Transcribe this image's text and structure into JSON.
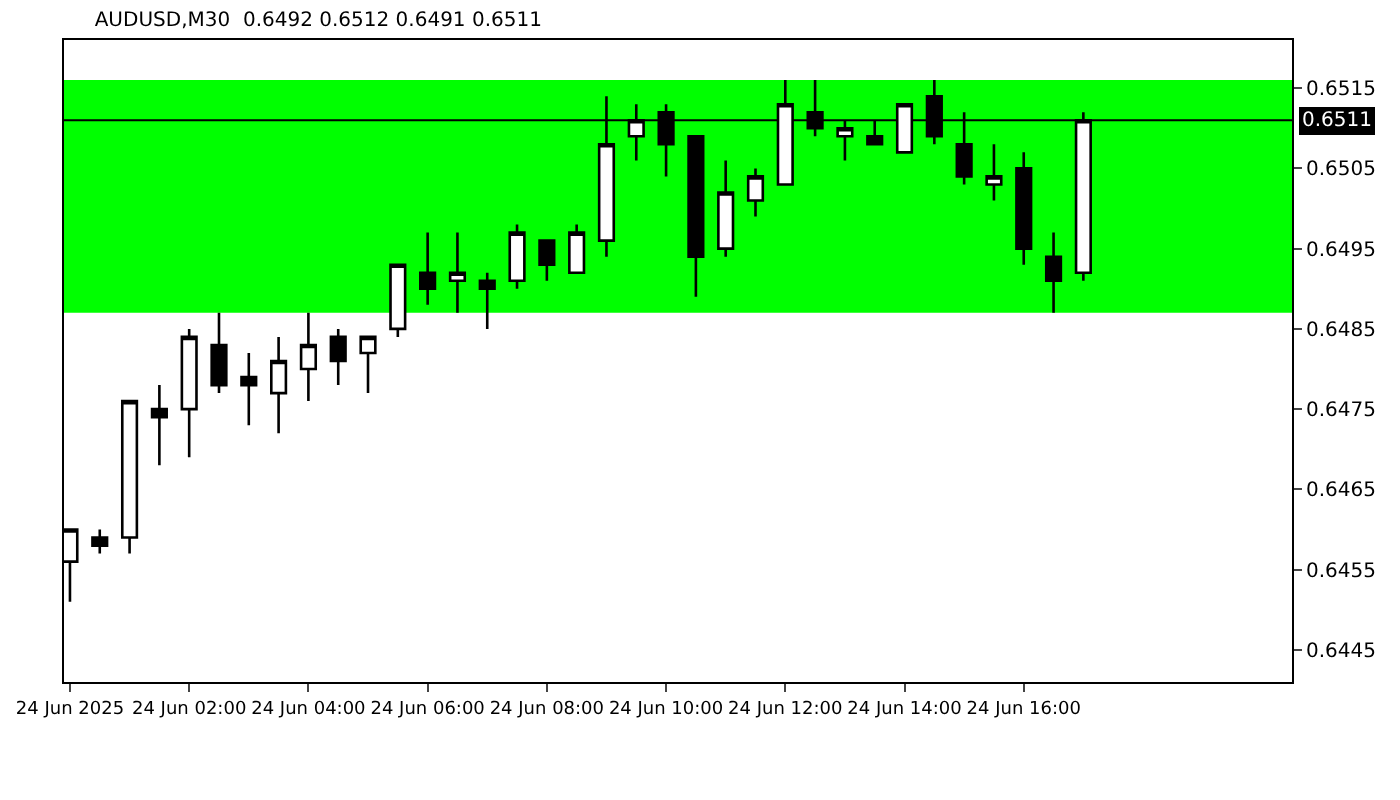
{
  "chart_data": {
    "type": "candlestick",
    "title": "AUDUSD,M30  0.6492 0.6512 0.6491 0.6511",
    "x": [
      "2025-06-24T00:00",
      "2025-06-24T00:30",
      "2025-06-24T01:00",
      "2025-06-24T01:30",
      "2025-06-24T02:00",
      "2025-06-24T02:30",
      "2025-06-24T03:00",
      "2025-06-24T03:30",
      "2025-06-24T04:00",
      "2025-06-24T04:30",
      "2025-06-24T05:00",
      "2025-06-24T05:30",
      "2025-06-24T06:00",
      "2025-06-24T06:30",
      "2025-06-24T07:00",
      "2025-06-24T07:30",
      "2025-06-24T08:00",
      "2025-06-24T08:30",
      "2025-06-24T09:00",
      "2025-06-24T09:30",
      "2025-06-24T10:00",
      "2025-06-24T10:30",
      "2025-06-24T11:00",
      "2025-06-24T11:30",
      "2025-06-24T12:00",
      "2025-06-24T12:30",
      "2025-06-24T13:00",
      "2025-06-24T13:30",
      "2025-06-24T14:00",
      "2025-06-24T14:30",
      "2025-06-24T15:00",
      "2025-06-24T15:30",
      "2025-06-24T16:00",
      "2025-06-24T16:30",
      "2025-06-24T17:00"
    ],
    "ohlc": [
      [
        0.6456,
        0.646,
        0.6451,
        0.646
      ],
      [
        0.6459,
        0.646,
        0.6457,
        0.6458
      ],
      [
        0.6459,
        0.6476,
        0.6457,
        0.6476
      ],
      [
        0.6475,
        0.6478,
        0.6468,
        0.6474
      ],
      [
        0.6475,
        0.6485,
        0.6469,
        0.6484
      ],
      [
        0.6483,
        0.6487,
        0.6477,
        0.6478
      ],
      [
        0.6479,
        0.6482,
        0.6473,
        0.6478
      ],
      [
        0.6477,
        0.6484,
        0.6472,
        0.6481
      ],
      [
        0.648,
        0.6487,
        0.6476,
        0.6483
      ],
      [
        0.6484,
        0.6485,
        0.6478,
        0.6481
      ],
      [
        0.6482,
        0.6484,
        0.6477,
        0.6484
      ],
      [
        0.6485,
        0.6493,
        0.6484,
        0.6493
      ],
      [
        0.6492,
        0.6497,
        0.6488,
        0.649
      ],
      [
        0.6491,
        0.6497,
        0.6487,
        0.6492
      ],
      [
        0.6491,
        0.6492,
        0.6485,
        0.649
      ],
      [
        0.6491,
        0.6498,
        0.649,
        0.6497
      ],
      [
        0.6496,
        0.6496,
        0.6491,
        0.6493
      ],
      [
        0.6492,
        0.6498,
        0.6492,
        0.6497
      ],
      [
        0.6496,
        0.6514,
        0.6494,
        0.6508
      ],
      [
        0.6509,
        0.6513,
        0.6506,
        0.6511
      ],
      [
        0.6512,
        0.6513,
        0.6504,
        0.6508
      ],
      [
        0.6509,
        0.6509,
        0.6489,
        0.6494
      ],
      [
        0.6495,
        0.6506,
        0.6494,
        0.6502
      ],
      [
        0.6501,
        0.6505,
        0.6499,
        0.6504
      ],
      [
        0.6503,
        0.6516,
        0.6503,
        0.6513
      ],
      [
        0.6512,
        0.6516,
        0.6509,
        0.651
      ],
      [
        0.6509,
        0.6511,
        0.6506,
        0.651
      ],
      [
        0.6509,
        0.6511,
        0.6508,
        0.6508
      ],
      [
        0.6507,
        0.6513,
        0.6507,
        0.6513
      ],
      [
        0.6514,
        0.6516,
        0.6508,
        0.6509
      ],
      [
        0.6508,
        0.6512,
        0.6503,
        0.6504
      ],
      [
        0.6503,
        0.6508,
        0.6501,
        0.6504
      ],
      [
        0.6505,
        0.6507,
        0.6493,
        0.6495
      ],
      [
        0.6494,
        0.6497,
        0.6487,
        0.6491
      ],
      [
        0.6492,
        0.6512,
        0.6491,
        0.6511
      ]
    ],
    "xlim": [
      "2025-06-23T23:54",
      "2025-06-24T20:30"
    ],
    "xticks": [
      {
        "value": "2025-06-24T00:00",
        "label": "24 Jun 2025"
      },
      {
        "value": "2025-06-24T02:00",
        "label": "24 Jun 02:00"
      },
      {
        "value": "2025-06-24T04:00",
        "label": "24 Jun 04:00"
      },
      {
        "value": "2025-06-24T06:00",
        "label": "24 Jun 06:00"
      },
      {
        "value": "2025-06-24T08:00",
        "label": "24 Jun 08:00"
      },
      {
        "value": "2025-06-24T10:00",
        "label": "24 Jun 10:00"
      },
      {
        "value": "2025-06-24T12:00",
        "label": "24 Jun 12:00"
      },
      {
        "value": "2025-06-24T14:00",
        "label": "24 Jun 14:00"
      },
      {
        "value": "2025-06-24T16:00",
        "label": "24 Jun 16:00"
      }
    ],
    "ylim": [
      0.6441,
      0.6521
    ],
    "yticks": [
      0.6445,
      0.6455,
      0.6465,
      0.6475,
      0.6485,
      0.6495,
      0.6505,
      0.6515
    ],
    "color": "#000000",
    "bands": [
      {
        "axis": "y",
        "from": 0.6487,
        "to": 0.6516,
        "color": "#00ff00"
      }
    ],
    "ref_lines": [
      {
        "axis": "y",
        "value": 0.6511,
        "label": "0.6511",
        "color": "#000000"
      }
    ],
    "grid": false
  }
}
